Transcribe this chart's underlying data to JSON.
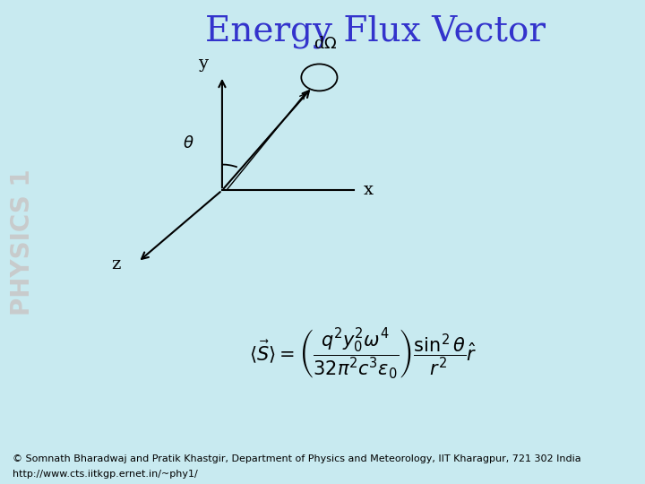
{
  "title": "Energy Flux Vector",
  "title_color": "#3333cc",
  "title_fontsize": 28,
  "bg_color": "#c8eaf0",
  "sidebar_color": "#a0d4e0",
  "sidebar_text": "PHYSICS 1",
  "sidebar_text_color": "#c8c8c8",
  "formula": "$\\langle \\vec{S} \\rangle = \\left( \\dfrac{q^2 y_0^2 \\omega^4}{32\\pi^2 c^3 \\epsilon_0} \\right) \\dfrac{\\sin^2\\theta}{r^2} \\hat{r}$",
  "dOmega_label": "d$\\Omega$",
  "axis_label_x": "x",
  "axis_label_y": "y",
  "axis_label_z": "z",
  "theta_label": "$\\theta$",
  "footer_text1": "© Somnath Bharadwaj and Pratik Khastgir, Department of Physics and Meteorology, IIT Kharagpur, 721 302 India",
  "footer_text2": "http://www.cts.iitkgp.ernet.in/~phy1/",
  "footer_color": "#c8e8d0",
  "footer_fontsize": 8
}
